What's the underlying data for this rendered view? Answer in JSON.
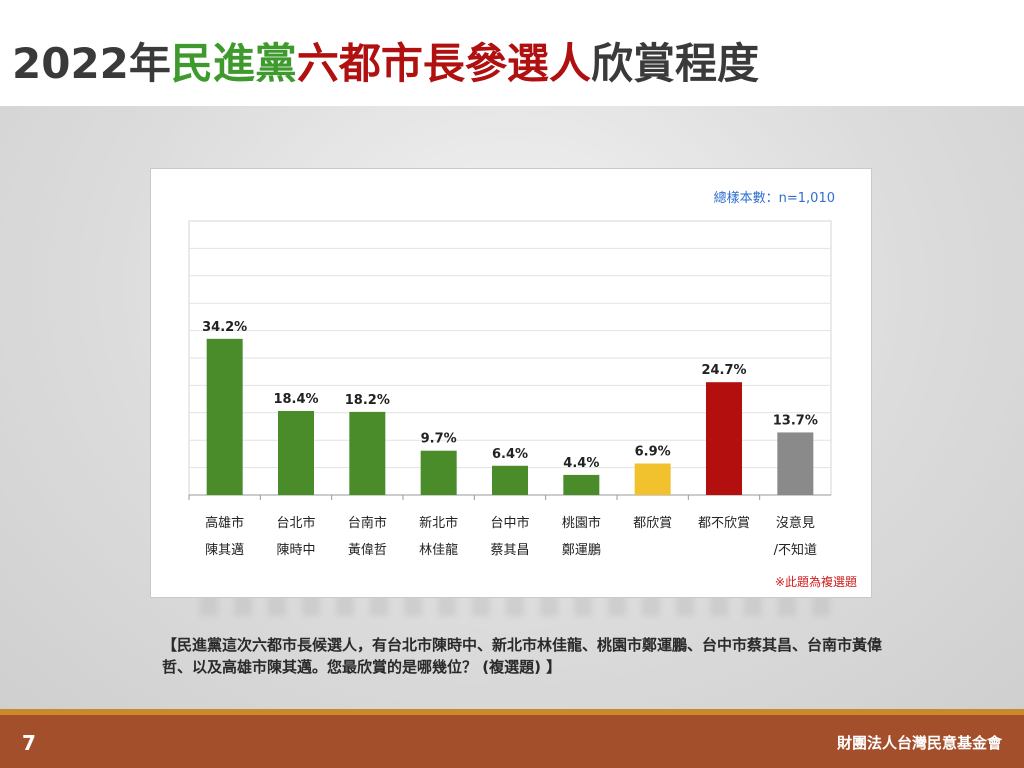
{
  "slide": {
    "title_parts": [
      {
        "text": "2022年",
        "color": "#3a3a3a"
      },
      {
        "text": "民進黨",
        "color": "#3f9a2e"
      },
      {
        "text": "六都市長參選人",
        "color": "#b01010"
      },
      {
        "text": "欣賞程度",
        "color": "#3a3a3a"
      }
    ],
    "sample_size": "總樣本數：n=1,010",
    "note": "※此題為複選題",
    "question": "【民進黨這次六都市長候選人，有台北市陳時中、新北市林佳龍、桃園市鄭運鵬、台中市蔡其昌、台南市黃偉哲、以及高雄市陳其邁。您最欣賞的是哪幾位？ (複選題) 】",
    "page_number": "7",
    "organization": "財團法人台灣民意基金會"
  },
  "chart_data": {
    "type": "bar",
    "categories": [
      [
        "高雄市",
        "陳其邁"
      ],
      [
        "台北市",
        "陳時中"
      ],
      [
        "台南市",
        "黃偉哲"
      ],
      [
        "新北市",
        "林佳龍"
      ],
      [
        "台中市",
        "蔡其昌"
      ],
      [
        "桃園市",
        "鄭運鵬"
      ],
      [
        "都欣賞"
      ],
      [
        "都不欣賞"
      ],
      [
        "沒意見",
        "/不知道"
      ]
    ],
    "values": [
      34.2,
      18.4,
      18.2,
      9.7,
      6.4,
      4.4,
      6.9,
      24.7,
      13.7
    ],
    "labels": [
      "34.2%",
      "18.4%",
      "18.2%",
      "9.7%",
      "6.4%",
      "4.4%",
      "6.9%",
      "24.7%",
      "13.7%"
    ],
    "colors": [
      "#4a8b2a",
      "#4a8b2a",
      "#4a8b2a",
      "#4a8b2a",
      "#4a8b2a",
      "#4a8b2a",
      "#f2c12e",
      "#b30f0f",
      "#8a8a8a"
    ],
    "ylim": [
      0,
      60
    ],
    "grid": true,
    "unit": "%"
  }
}
